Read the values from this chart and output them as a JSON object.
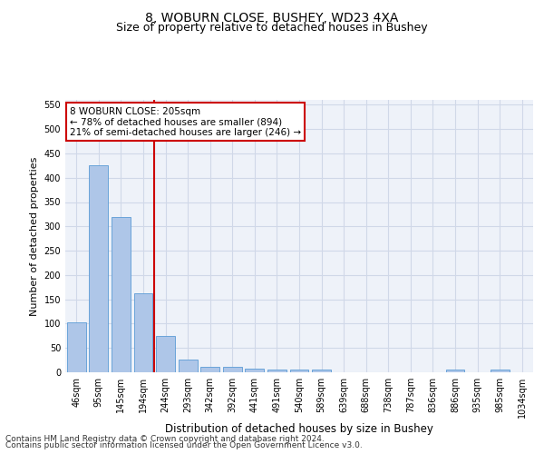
{
  "title1": "8, WOBURN CLOSE, BUSHEY, WD23 4XA",
  "title2": "Size of property relative to detached houses in Bushey",
  "xlabel": "Distribution of detached houses by size in Bushey",
  "ylabel": "Number of detached properties",
  "footer1": "Contains HM Land Registry data © Crown copyright and database right 2024.",
  "footer2": "Contains public sector information licensed under the Open Government Licence v3.0.",
  "categories": [
    "46sqm",
    "95sqm",
    "145sqm",
    "194sqm",
    "244sqm",
    "293sqm",
    "342sqm",
    "392sqm",
    "441sqm",
    "491sqm",
    "540sqm",
    "589sqm",
    "639sqm",
    "688sqm",
    "738sqm",
    "787sqm",
    "836sqm",
    "886sqm",
    "935sqm",
    "985sqm",
    "1034sqm"
  ],
  "values": [
    103,
    425,
    320,
    163,
    75,
    26,
    12,
    12,
    8,
    5,
    5,
    5,
    0,
    0,
    0,
    0,
    0,
    5,
    0,
    5,
    0
  ],
  "bar_color": "#aec6e8",
  "bar_edge_color": "#5b9bd5",
  "vline_x": 3.5,
  "vline_color": "#cc0000",
  "annotation_text": "8 WOBURN CLOSE: 205sqm\n← 78% of detached houses are smaller (894)\n21% of semi-detached houses are larger (246) →",
  "annotation_box_color": "#ffffff",
  "annotation_box_edge": "#cc0000",
  "ylim": [
    0,
    560
  ],
  "yticks": [
    0,
    50,
    100,
    150,
    200,
    250,
    300,
    350,
    400,
    450,
    500,
    550
  ],
  "grid_color": "#d0d8e8",
  "bg_color": "#eef2f9",
  "title1_fontsize": 10,
  "title2_fontsize": 9,
  "xlabel_fontsize": 8.5,
  "ylabel_fontsize": 8,
  "tick_fontsize": 7,
  "footer_fontsize": 6.5,
  "annotation_fontsize": 7.5
}
